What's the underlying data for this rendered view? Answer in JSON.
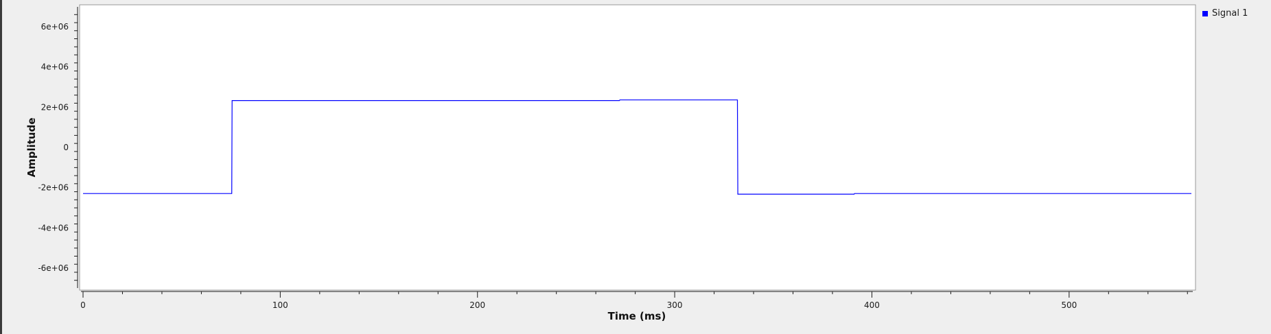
{
  "chart_data": {
    "type": "line",
    "xlabel": "Time (ms)",
    "ylabel": "Amplitude",
    "xlim": [
      0,
      562
    ],
    "ylim": [
      -7000000,
      7000000
    ],
    "xticks": [
      0,
      100,
      200,
      300,
      400,
      500
    ],
    "xtick_labels": [
      "0",
      "100",
      "200",
      "300",
      "400",
      "500"
    ],
    "yticks": [
      6000000,
      4000000,
      2000000,
      0,
      -2000000,
      -4000000,
      -6000000
    ],
    "ytick_labels": [
      "6e+06",
      "4e+06",
      "2e+06",
      "0",
      "-2e+06",
      "-4e+06",
      "-6e+06"
    ],
    "grid": false,
    "legend_position": "top-right",
    "series": [
      {
        "name": "Signal 1",
        "color": "#0000ff",
        "x": [
          0,
          75.4,
          75.6,
          272,
          272.2,
          331.8,
          332,
          391,
          391.2,
          562
        ],
        "y": [
          -2290000,
          -2290000,
          2330000,
          2330000,
          2360000,
          2360000,
          -2320000,
          -2320000,
          -2290000,
          -2290000
        ]
      }
    ]
  }
}
